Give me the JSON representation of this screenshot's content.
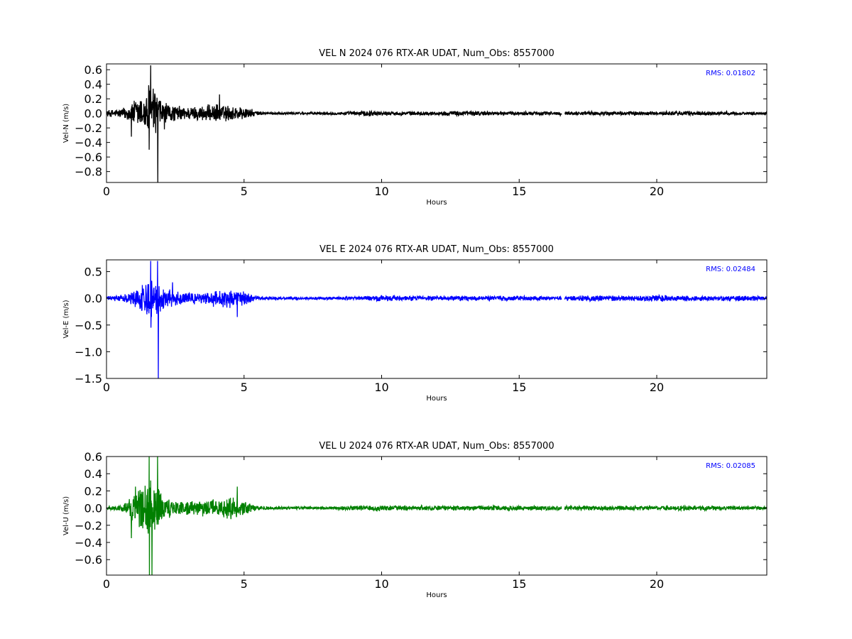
{
  "chart_data": [
    {
      "type": "line",
      "title": "VEL N 2024 076 RTX-AR  UDAT, Num_Obs: 8557000",
      "xlabel": "Hours",
      "ylabel": "Vel-N (m/s)",
      "xlim": [
        0,
        24
      ],
      "ylim": [
        -0.95,
        0.68
      ],
      "xticks": [
        0,
        5,
        10,
        15,
        20
      ],
      "yticks": [
        -0.8,
        -0.6,
        -0.4,
        -0.2,
        0.0,
        0.2,
        0.4,
        0.6
      ],
      "ytick_labels": [
        "−0.8",
        "−0.6",
        "−0.4",
        "−0.2",
        "0.0",
        "0.2",
        "0.4",
        "0.6"
      ],
      "grid": false,
      "color": "#000000",
      "rms_label": "RMS:  0.01802",
      "series": [
        {
          "env_x": [
            0,
            0.5,
            0.8,
            1.0,
            1.2,
            1.4,
            1.5,
            1.6,
            1.7,
            1.8,
            1.9,
            2.0,
            2.2,
            2.5,
            3.0,
            3.5,
            4.0,
            4.5,
            5.0,
            5.3,
            5.5,
            6,
            8,
            9,
            9.5,
            10,
            12,
            13,
            14,
            15,
            16.5,
            18,
            20,
            21,
            22,
            24
          ],
          "env_y": [
            0.05,
            0.07,
            0.12,
            0.2,
            0.28,
            0.25,
            0.45,
            0.5,
            0.45,
            0.35,
            0.28,
            0.2,
            0.15,
            0.12,
            0.1,
            0.12,
            0.14,
            0.12,
            0.1,
            0.06,
            0.03,
            0.02,
            0.02,
            0.03,
            0.05,
            0.03,
            0.03,
            0.04,
            0.03,
            0.03,
            0.03,
            0.03,
            0.03,
            0.04,
            0.03,
            0.02
          ],
          "spikes": [
            {
              "x": 1.6,
              "y": 0.66
            },
            {
              "x": 1.55,
              "y": -0.5
            },
            {
              "x": 1.86,
              "y": -0.95
            },
            {
              "x": 4.1,
              "y": 0.26
            },
            {
              "x": 0.9,
              "y": -0.32
            },
            {
              "x": 2.1,
              "y": -0.22
            }
          ],
          "gap": [
            16.55,
            16.65
          ]
        }
      ]
    },
    {
      "type": "line",
      "title": "VEL E 2024 076 RTX-AR  UDAT, Num_Obs: 8557000",
      "xlabel": "Hours",
      "ylabel": "Vel-E (m/s)",
      "xlim": [
        0,
        24
      ],
      "ylim": [
        -1.5,
        0.72
      ],
      "xticks": [
        0,
        5,
        10,
        15,
        20
      ],
      "yticks": [
        -1.5,
        -1.0,
        -0.5,
        0.0,
        0.5
      ],
      "ytick_labels": [
        "−1.5",
        "−1.0",
        "−0.5",
        "0.0",
        "0.5"
      ],
      "grid": false,
      "color": "#0000ff",
      "rms_label": "RMS:  0.02484",
      "series": [
        {
          "env_x": [
            0,
            0.5,
            0.8,
            1.0,
            1.2,
            1.4,
            1.5,
            1.6,
            1.7,
            1.8,
            1.9,
            2.0,
            2.2,
            2.5,
            3.0,
            3.5,
            4.0,
            4.5,
            5.0,
            5.3,
            5.5,
            6,
            8,
            9,
            10,
            11,
            13,
            14,
            15,
            16.5,
            17.5,
            18,
            19.5,
            20,
            20.5,
            22,
            23.5,
            24
          ],
          "env_y": [
            0.04,
            0.06,
            0.12,
            0.18,
            0.25,
            0.3,
            0.45,
            0.5,
            0.4,
            0.35,
            0.3,
            0.25,
            0.2,
            0.15,
            0.12,
            0.1,
            0.18,
            0.2,
            0.15,
            0.08,
            0.04,
            0.03,
            0.03,
            0.04,
            0.06,
            0.05,
            0.05,
            0.05,
            0.05,
            0.04,
            0.07,
            0.06,
            0.05,
            0.08,
            0.06,
            0.05,
            0.06,
            0.04
          ],
          "spikes": [
            {
              "x": 1.6,
              "y": 0.7
            },
            {
              "x": 1.85,
              "y": 0.7
            },
            {
              "x": 1.6,
              "y": -0.55
            },
            {
              "x": 1.88,
              "y": -1.5
            },
            {
              "x": 4.75,
              "y": -0.35
            },
            {
              "x": 2.4,
              "y": 0.3
            }
          ],
          "gap": [
            16.55,
            16.65
          ]
        }
      ]
    },
    {
      "type": "line",
      "title": "VEL U 2024 076 RTX-AR  UDAT, Num_Obs: 8557000",
      "xlabel": "Hours",
      "ylabel": "Vel-U (m/s)",
      "xlim": [
        0,
        24
      ],
      "ylim": [
        -0.78,
        0.6
      ],
      "xticks": [
        0,
        5,
        10,
        15,
        20
      ],
      "yticks": [
        -0.6,
        -0.4,
        -0.2,
        0.0,
        0.2,
        0.4,
        0.6
      ],
      "ytick_labels": [
        "−0.6",
        "−0.4",
        "−0.2",
        "0.0",
        "0.2",
        "0.4",
        "0.6"
      ],
      "grid": false,
      "color": "#008000",
      "rms_label": "RMS:  0.02085",
      "series": [
        {
          "env_x": [
            0,
            0.5,
            0.8,
            1.0,
            1.2,
            1.4,
            1.5,
            1.6,
            1.7,
            1.8,
            1.9,
            2.0,
            2.2,
            2.5,
            3.0,
            3.5,
            4.0,
            4.5,
            5.0,
            5.3,
            5.5,
            6,
            8,
            9,
            10,
            11,
            13,
            14,
            15,
            16.5,
            18,
            20,
            22,
            24
          ],
          "env_y": [
            0.02,
            0.04,
            0.1,
            0.18,
            0.3,
            0.35,
            0.45,
            0.4,
            0.35,
            0.3,
            0.25,
            0.2,
            0.15,
            0.1,
            0.08,
            0.1,
            0.12,
            0.15,
            0.1,
            0.05,
            0.03,
            0.02,
            0.02,
            0.03,
            0.04,
            0.03,
            0.03,
            0.03,
            0.03,
            0.03,
            0.03,
            0.03,
            0.03,
            0.02
          ],
          "spikes": [
            {
              "x": 1.55,
              "y": 0.6
            },
            {
              "x": 1.85,
              "y": 0.6
            },
            {
              "x": 1.55,
              "y": -0.78
            },
            {
              "x": 1.65,
              "y": -0.78
            },
            {
              "x": 0.9,
              "y": -0.35
            },
            {
              "x": 4.75,
              "y": 0.25
            },
            {
              "x": 1.05,
              "y": 0.25
            }
          ],
          "gap": [
            16.55,
            16.65
          ]
        }
      ]
    }
  ]
}
